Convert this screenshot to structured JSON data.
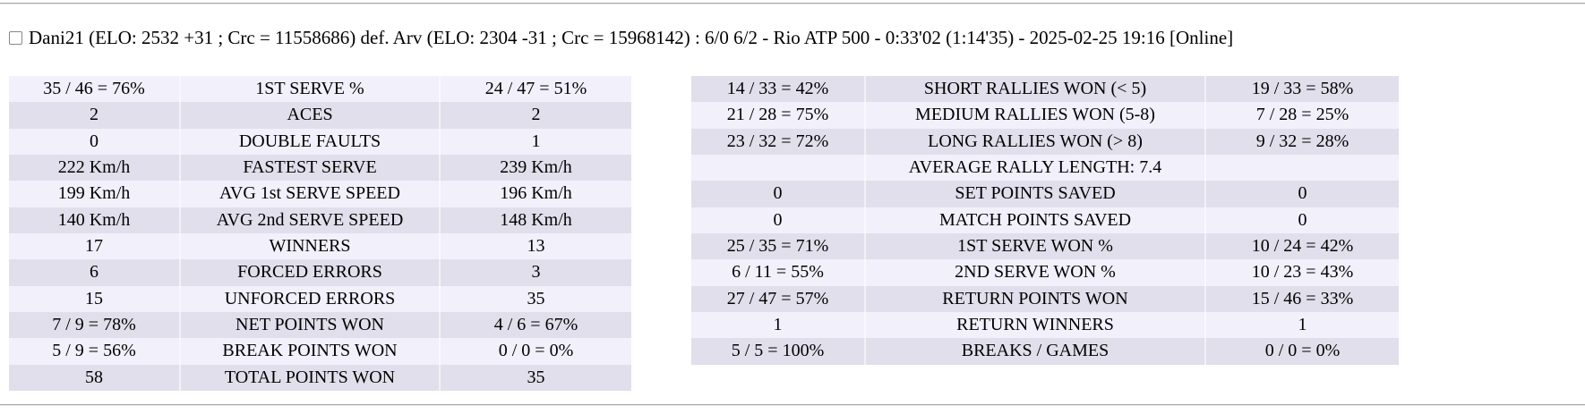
{
  "header": {
    "match_summary": "Dani21 (ELO: 2532 +31 ; Crc = 11558686) def. Arv (ELO: 2304 -31 ; Crc = 15968142) : 6/0 6/2 - Rio ATP 500 - 0:33'02 (1:14'35) - 2025-02-25 19:16 [Online]"
  },
  "colors": {
    "row_light": "#f1f0fb",
    "row_dark": "#e0dfeb",
    "divider": "#a5a5a5",
    "text": "#000000"
  },
  "stats_left": {
    "first_row_shade": "light",
    "rows": [
      {
        "p1": "35 / 46 = 76%",
        "label": "1ST SERVE %",
        "p2": "24 / 47 = 51%"
      },
      {
        "p1": "2",
        "label": "ACES",
        "p2": "2"
      },
      {
        "p1": "0",
        "label": "DOUBLE FAULTS",
        "p2": "1"
      },
      {
        "p1": "222 Km/h",
        "label": "FASTEST SERVE",
        "p2": "239 Km/h"
      },
      {
        "p1": "199 Km/h",
        "label": "AVG 1st SERVE SPEED",
        "p2": "196 Km/h"
      },
      {
        "p1": "140 Km/h",
        "label": "AVG 2nd SERVE SPEED",
        "p2": "148 Km/h"
      },
      {
        "p1": "17",
        "label": "WINNERS",
        "p2": "13"
      },
      {
        "p1": "6",
        "label": "FORCED ERRORS",
        "p2": "3"
      },
      {
        "p1": "15",
        "label": "UNFORCED ERRORS",
        "p2": "35"
      },
      {
        "p1": "7 / 9 = 78%",
        "label": "NET POINTS WON",
        "p2": "4 / 6 = 67%"
      },
      {
        "p1": "5 / 9 = 56%",
        "label": "BREAK POINTS WON",
        "p2": "0 / 0 = 0%"
      },
      {
        "p1": "58",
        "label": "TOTAL POINTS WON",
        "p2": "35"
      }
    ]
  },
  "stats_right": {
    "first_row_shade": "dark",
    "rows": [
      {
        "p1": "14 / 33 = 42%",
        "label": "SHORT RALLIES WON (< 5)",
        "p2": "19 / 33 = 58%"
      },
      {
        "p1": "21 / 28 = 75%",
        "label": "MEDIUM RALLIES WON (5-8)",
        "p2": "7 / 28 = 25%"
      },
      {
        "p1": "23 / 32 = 72%",
        "label": "LONG RALLIES WON (> 8)",
        "p2": "9 / 32 = 28%"
      },
      {
        "p1": "",
        "label": "AVERAGE RALLY LENGTH: 7.4",
        "p2": ""
      },
      {
        "p1": "0",
        "label": "SET POINTS SAVED",
        "p2": "0"
      },
      {
        "p1": "0",
        "label": "MATCH POINTS SAVED",
        "p2": "0"
      },
      {
        "p1": "25 / 35 = 71%",
        "label": "1ST SERVE WON %",
        "p2": "10 / 24 = 42%"
      },
      {
        "p1": "6 / 11 = 55%",
        "label": "2ND SERVE WON %",
        "p2": "10 / 23 = 43%"
      },
      {
        "p1": "27 / 47 = 57%",
        "label": "RETURN POINTS WON",
        "p2": "15 / 46 = 33%"
      },
      {
        "p1": "1",
        "label": "RETURN WINNERS",
        "p2": "1"
      },
      {
        "p1": "5 / 5 = 100%",
        "label": "BREAKS / GAMES",
        "p2": "0 / 0 = 0%"
      }
    ]
  }
}
